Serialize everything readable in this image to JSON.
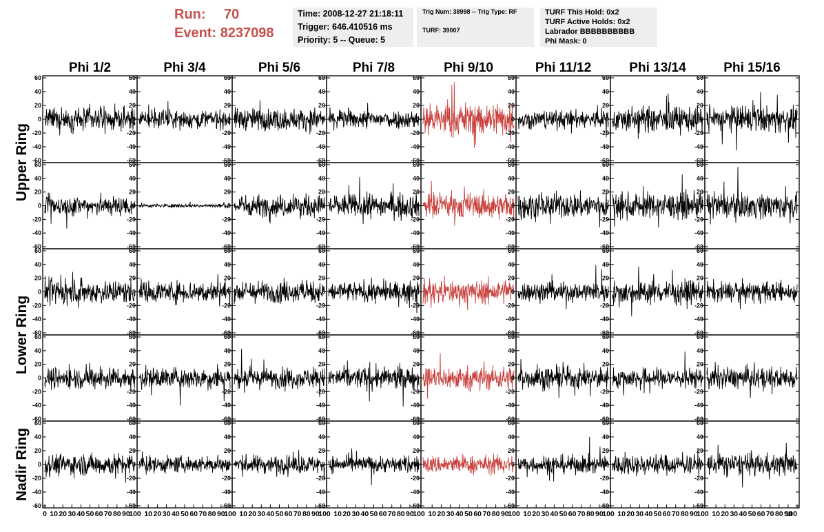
{
  "header": {
    "run_label": "Run:",
    "run_value": "70",
    "event_label": "Event:",
    "event_value": "8237098",
    "time": "Time: 2008-12-27 21:18:11",
    "trigger": "Trigger: 646.410516 ms",
    "priority": "Priority: 5 -- Queue: 5",
    "trig_num": "Trig Num: 38998 -- Trig Type: RF",
    "turf": "TURF: 39007",
    "turf_this_hold": "TURF This Hold: 0x2",
    "turf_active_holds": "TURF Active Holds: 0x2",
    "labrador": "Labrador BBBBBBBBBB",
    "phi_mask": "Phi Mask: 0"
  },
  "colors": {
    "trace": "#000000",
    "highlight_trace": "#c8403c",
    "header_red": "#c8504b",
    "box_bg": "#eeeeee"
  },
  "chart_data": {
    "type": "line",
    "columns": [
      "Phi 1/2",
      "Phi 3/4",
      "Phi 5/6",
      "Phi 7/8",
      "Phi 9/10",
      "Phi 11/12",
      "Phi 13/14",
      "Phi 15/16"
    ],
    "rings": [
      "Upper Ring",
      "Lower Ring",
      "Nadir Ring"
    ],
    "rows": 5,
    "highlight_column": "Phi 9/10",
    "xlim": [
      0,
      100
    ],
    "ylim": [
      -60,
      60
    ],
    "y_ticks": [
      "60",
      "40",
      "20",
      "0",
      "-20",
      "-40",
      "-60"
    ],
    "x_ticks": [
      "0",
      "10",
      "20",
      "30",
      "40",
      "50",
      "60",
      "70",
      "80",
      "90",
      "100"
    ],
    "samples": 260,
    "amplitude": [
      [
        12,
        10,
        12,
        10,
        18,
        10,
        14,
        14
      ],
      [
        11,
        2,
        12,
        13,
        14,
        14,
        14,
        14
      ],
      [
        13,
        12,
        12,
        11,
        13,
        11,
        13,
        11
      ],
      [
        12,
        12,
        11,
        12,
        13,
        12,
        11,
        12
      ],
      [
        12,
        9,
        10,
        9,
        10,
        10,
        11,
        12
      ]
    ]
  }
}
